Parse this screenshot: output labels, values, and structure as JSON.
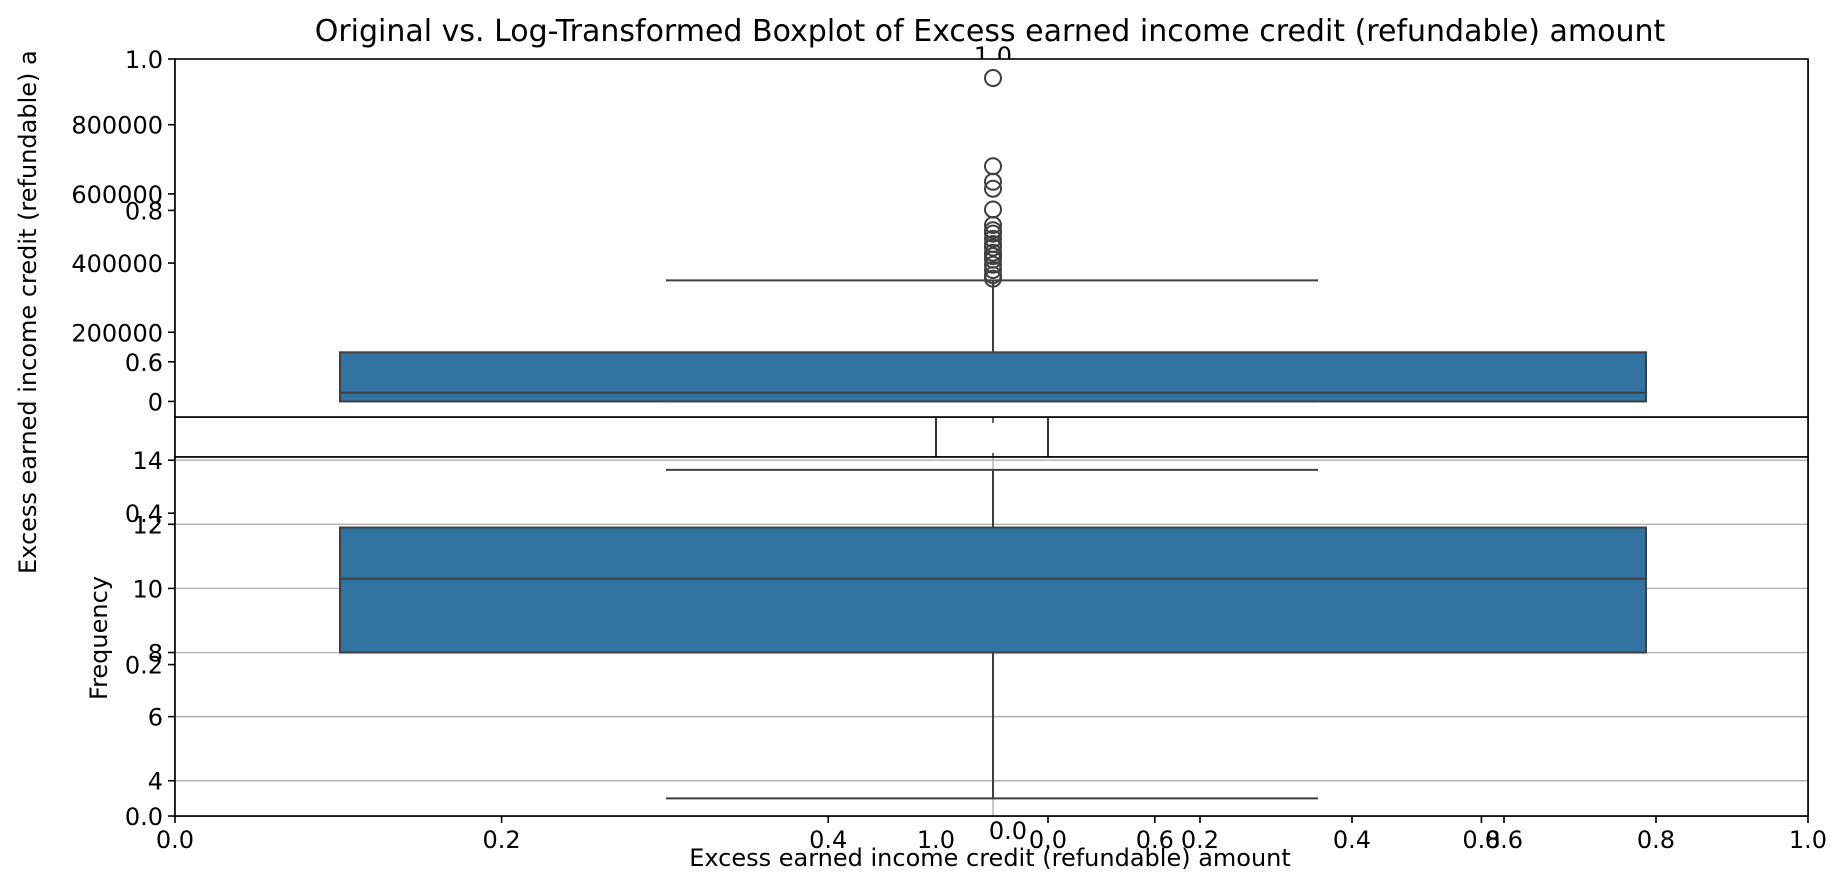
{
  "chart_data": {
    "type": "box",
    "title": "Original vs. Log-Transformed Boxplot of Excess earned income credit (refundable) amount",
    "colors": {
      "box_fill": "#3274a1",
      "box_edge": "#3f3f3f",
      "grid": "#b0b0b0"
    },
    "background_axes": {
      "xlabel": "Excess earned income credit (refundable) amount",
      "ylabel": "Excess earned income credit (refundable) a",
      "xlim": [
        0,
        1
      ],
      "ylim": [
        0,
        1
      ],
      "xticks": [
        "0.0",
        "0.2",
        "0.4",
        "0.6",
        "0.8",
        "1.0"
      ],
      "yticks": [
        "0.0",
        "0.2",
        "0.4",
        "0.6",
        "0.8",
        "1.0"
      ]
    },
    "sub_axes_1": {
      "xticks": [
        "0.0",
        "1.0"
      ]
    },
    "sub_axes_2": {
      "xticks": [
        "0.0",
        "0.2",
        "0.4",
        "0.6",
        "0.8",
        "1.0"
      ]
    },
    "original": {
      "ylim": [
        -45000,
        990000
      ],
      "yticks": [
        {
          "label": "0",
          "value": 0
        },
        {
          "label": "200000",
          "value": 200000
        },
        {
          "label": "400000",
          "value": 400000
        },
        {
          "label": "600000",
          "value": 600000
        },
        {
          "label": "800000",
          "value": 800000
        }
      ],
      "box": {
        "whisker_low": 0,
        "q1": 0,
        "median": 25000,
        "q3": 142000,
        "whisker_high": 350000
      },
      "outliers": [
        355000,
        365000,
        380000,
        395000,
        410000,
        420000,
        430000,
        445000,
        455000,
        470000,
        485000,
        495000,
        510000,
        555000,
        615000,
        635000,
        680000,
        935000
      ]
    },
    "log_transformed": {
      "ylabel": "Frequency",
      "ylim": [
        2.9,
        14.1
      ],
      "grid": true,
      "yticks": [
        {
          "label": "4",
          "value": 4
        },
        {
          "label": "6",
          "value": 6
        },
        {
          "label": "8",
          "value": 8
        },
        {
          "label": "10",
          "value": 10
        },
        {
          "label": "12",
          "value": 12
        },
        {
          "label": "14",
          "value": 14
        }
      ],
      "box": {
        "whisker_low": 3.45,
        "q1": 8.0,
        "median": 10.3,
        "q3": 11.9,
        "whisker_high": 13.7
      }
    }
  }
}
